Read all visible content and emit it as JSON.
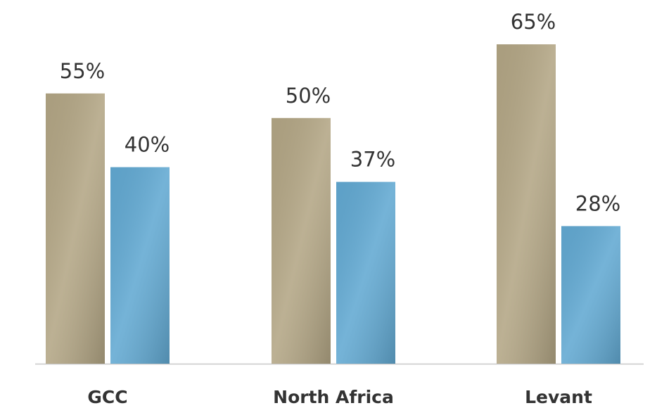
{
  "chart_data": {
    "type": "bar",
    "categories": [
      "GCC",
      "North Africa",
      "Levant"
    ],
    "series": [
      {
        "color": "#b3a685",
        "values": [
          55,
          50,
          65
        ],
        "value_labels": [
          "55%",
          "50%",
          "65%"
        ]
      },
      {
        "color": "#62a9d2",
        "values": [
          40,
          37,
          28
        ],
        "value_labels": [
          "40%",
          "37%",
          "28%"
        ]
      }
    ]
  }
}
